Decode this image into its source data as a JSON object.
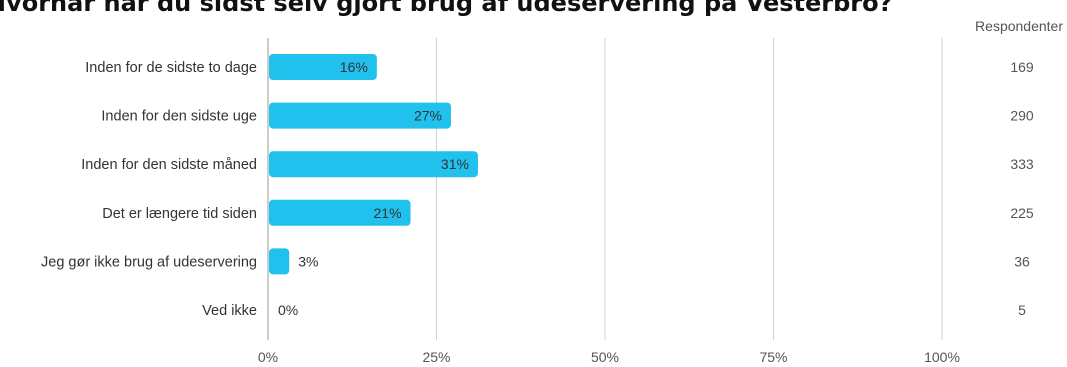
{
  "chart_data": {
    "type": "bar",
    "orientation": "horizontal",
    "title": "Hvornår har du sidst selv gjort brug af udeservering på Vesterbro?",
    "categories": [
      "Inden for de sidste to dage",
      "Inden for den sidste uge",
      "Inden for den sidste måned",
      "Det er længere tid siden",
      "Jeg gør ikke brug af udeservering",
      "Ved ikke"
    ],
    "values": [
      16,
      27,
      31,
      21,
      3,
      0
    ],
    "value_labels": [
      "16%",
      "27%",
      "31%",
      "21%",
      "3%",
      "0%"
    ],
    "respondents_header": "Respondenter",
    "respondents": [
      "169",
      "290",
      "333",
      "225",
      "36",
      "5"
    ],
    "xlim": [
      0,
      100
    ],
    "x_ticks": [
      0,
      25,
      50,
      75,
      100
    ],
    "x_tick_labels": [
      "0%",
      "25%",
      "50%",
      "75%",
      "100%"
    ],
    "grid": true,
    "bar_color": "#21c1ee"
  }
}
